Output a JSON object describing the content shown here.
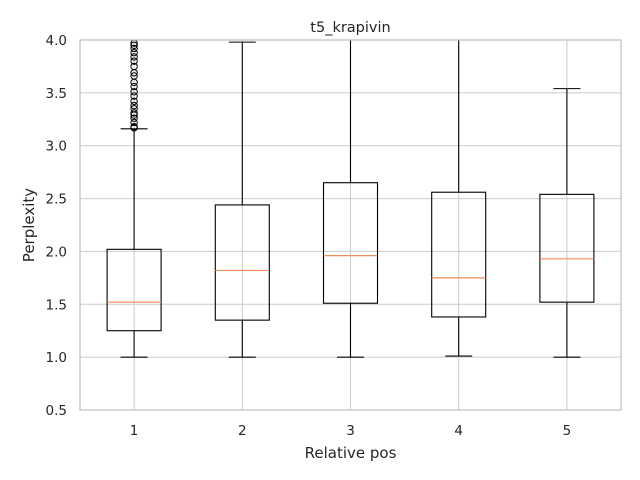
{
  "chart_data": {
    "type": "box",
    "title": "t5_krapivin",
    "xlabel": "Relative pos",
    "ylabel": "Perplexity",
    "ylim": [
      0.5,
      4.0
    ],
    "yticks": [
      "0.5",
      "1.0",
      "1.5",
      "2.0",
      "2.5",
      "3.0",
      "3.5",
      "4.0"
    ],
    "grid": true,
    "categories": [
      "1",
      "2",
      "3",
      "4",
      "5"
    ],
    "boxes": [
      {
        "whisker_low": 1.0,
        "q1": 1.25,
        "median": 1.52,
        "q3": 2.02,
        "whisker_high": 3.16,
        "outliers": [
          3.17,
          3.18,
          3.22,
          3.26,
          3.29,
          3.31,
          3.35,
          3.38,
          3.42,
          3.47,
          3.51,
          3.56,
          3.6,
          3.66,
          3.69,
          3.75,
          3.8,
          3.84,
          3.88,
          3.92,
          3.95,
          3.97
        ]
      },
      {
        "whisker_low": 1.0,
        "q1": 1.35,
        "median": 1.82,
        "q3": 2.44,
        "whisker_high": 3.98,
        "outliers": []
      },
      {
        "whisker_low": 1.0,
        "q1": 1.51,
        "median": 1.96,
        "q3": 2.65,
        "whisker_high": 4.0,
        "outliers": []
      },
      {
        "whisker_low": 1.01,
        "q1": 1.38,
        "median": 1.75,
        "q3": 2.56,
        "whisker_high": 4.0,
        "outliers": []
      },
      {
        "whisker_low": 1.0,
        "q1": 1.52,
        "median": 1.93,
        "q3": 2.54,
        "whisker_high": 3.54,
        "outliers": []
      }
    ],
    "colors": {
      "box": "#000000",
      "median": "#f28e5c",
      "grid": "#cccccc",
      "spine": "#bfbfbf",
      "text": "#262626"
    }
  }
}
